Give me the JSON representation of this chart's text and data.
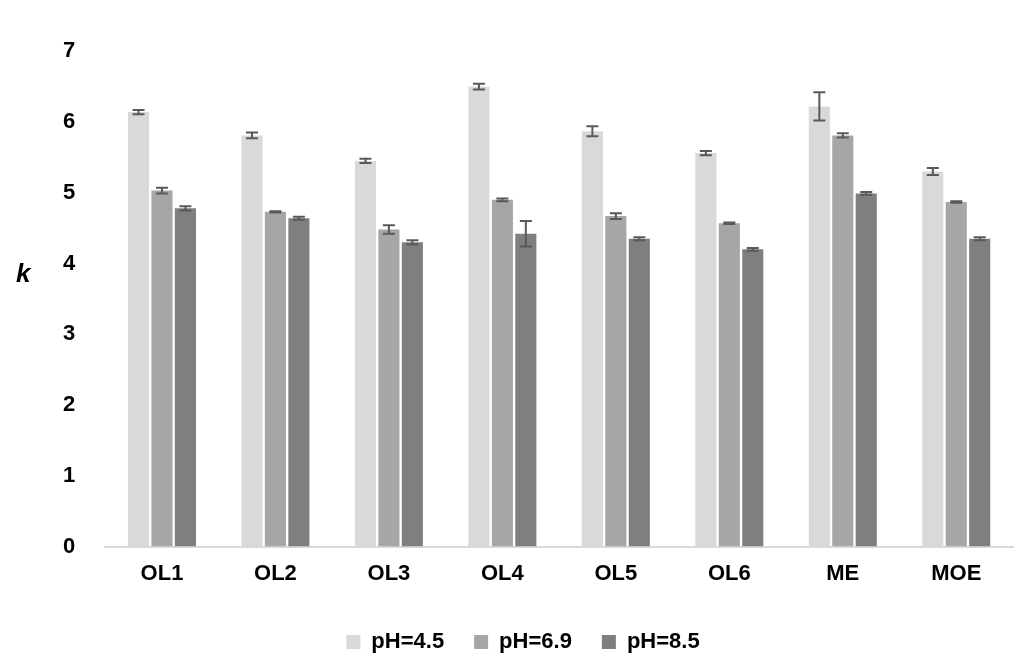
{
  "chart_data": {
    "type": "bar",
    "ylabel": "k",
    "categories": [
      "OL1",
      "OL2",
      "OL3",
      "OL4",
      "OL5",
      "OL6",
      "ME",
      "MOE"
    ],
    "series": [
      {
        "name": "pH=4.5",
        "color": "#d9d9d9",
        "values": [
          6.14,
          5.81,
          5.45,
          6.5,
          5.87,
          5.56,
          6.22,
          5.3
        ],
        "errors": [
          0.03,
          0.04,
          0.03,
          0.04,
          0.07,
          0.03,
          0.2,
          0.05
        ]
      },
      {
        "name": "pH=6.9",
        "color": "#a6a6a6",
        "values": [
          5.03,
          4.73,
          4.48,
          4.9,
          4.67,
          4.57,
          5.81,
          4.87
        ],
        "errors": [
          0.04,
          0.01,
          0.06,
          0.02,
          0.04,
          0.01,
          0.03,
          0.01
        ]
      },
      {
        "name": "pH=8.5",
        "color": "#7f7f7f",
        "values": [
          4.78,
          4.64,
          4.3,
          4.42,
          4.35,
          4.2,
          4.99,
          4.35
        ],
        "errors": [
          0.03,
          0.02,
          0.03,
          0.18,
          0.02,
          0.02,
          0.02,
          0.02
        ]
      }
    ],
    "ylim": [
      0,
      7
    ],
    "yticks": [
      0,
      1,
      2,
      3,
      4,
      5,
      6,
      7
    ],
    "grid": false,
    "legend": "bottom"
  }
}
